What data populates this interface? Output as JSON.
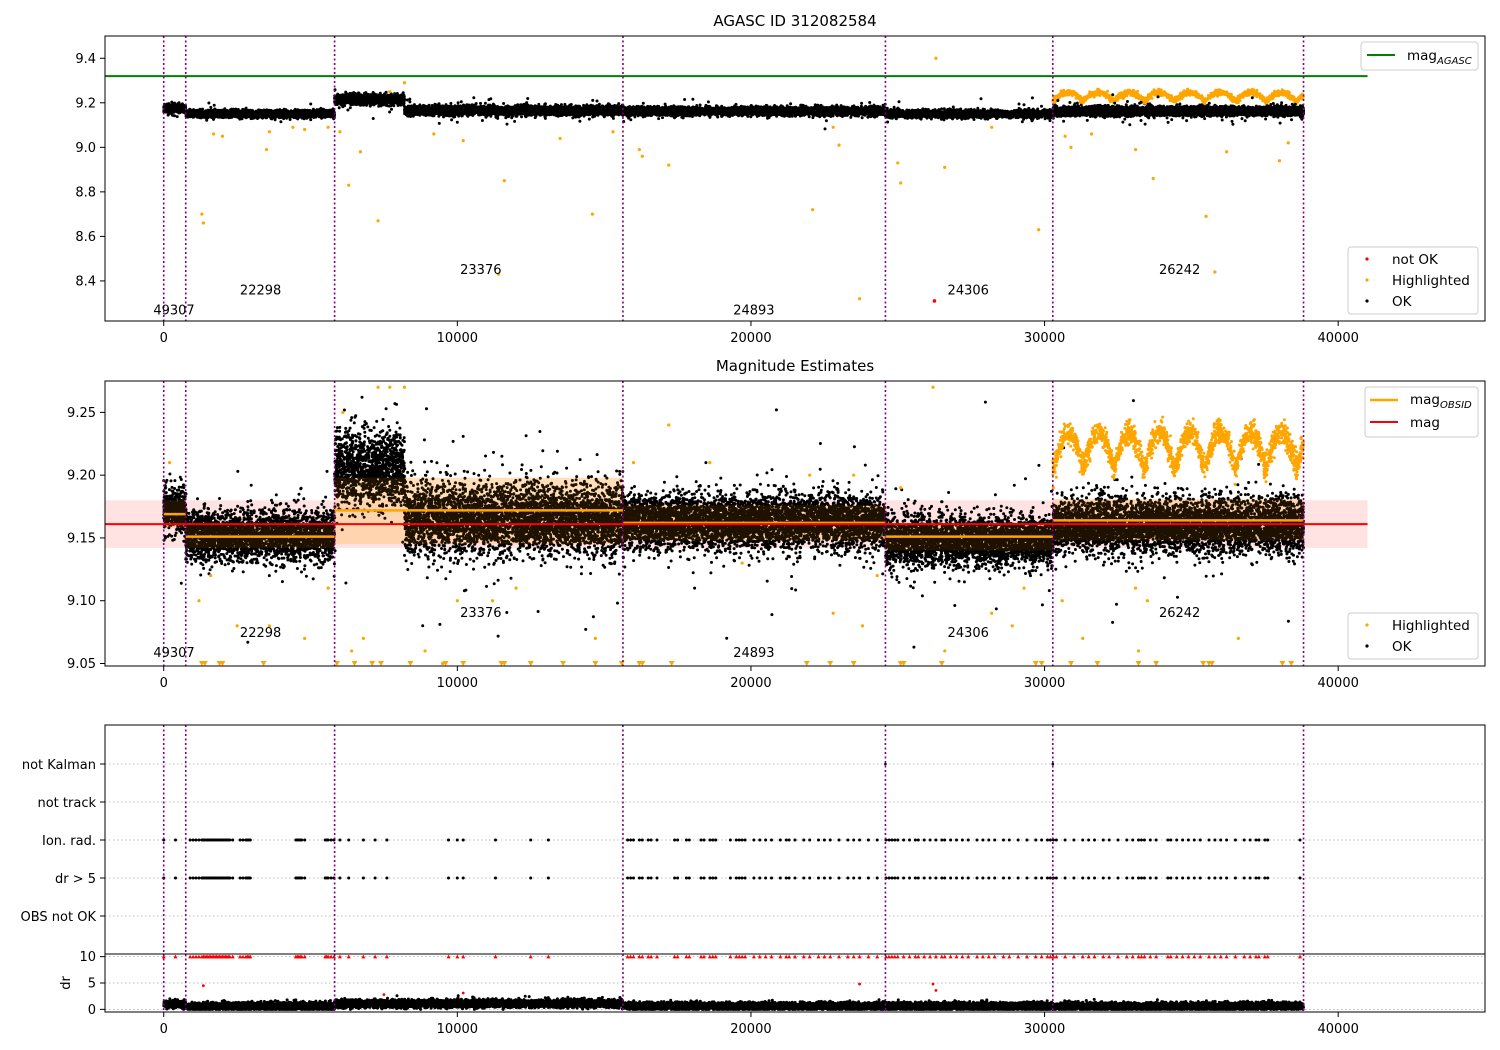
{
  "figure": {
    "suptitle": "",
    "x_ticks": [
      "0",
      "10000",
      "20000",
      "30000",
      "40000"
    ],
    "obs_boundaries": [
      0,
      750,
      5820,
      15640,
      24580,
      30280,
      38820
    ]
  },
  "colors": {
    "ok": "#000000",
    "highlighted": "#ffa500",
    "not_ok": "#ff0000",
    "mag_agasc": "#008000",
    "mag_obsid": "#ffa500",
    "mag": "#ff0000",
    "boundary": "#800080",
    "band_mag": "#ffc0c0",
    "band_obsid": "#ffdcb0"
  },
  "chart_data": [
    {
      "type": "scatter",
      "title": "AGASC ID 312082584",
      "xlim": [
        -2000,
        45000
      ],
      "ylim": [
        8.22,
        9.5
      ],
      "y_ticks": [
        "8.4",
        "8.6",
        "8.8",
        "9.0",
        "9.2",
        "9.4"
      ],
      "mag_agasc": 9.32,
      "legend_line": {
        "label": "mag",
        "sub": "AGASC"
      },
      "legend_points": [
        "not OK",
        "Highlighted",
        "OK"
      ],
      "obsids": [
        {
          "label": "49307",
          "x": 350,
          "y": 8.25
        },
        {
          "label": "22298",
          "x": 3300,
          "y": 8.34
        },
        {
          "label": "23376",
          "x": 10800,
          "y": 8.43
        },
        {
          "label": "24893",
          "x": 20100,
          "y": 8.25
        },
        {
          "label": "24306",
          "x": 27400,
          "y": 8.34
        },
        {
          "label": "26242",
          "x": 34600,
          "y": 8.43
        }
      ],
      "ok_bands": [
        {
          "x": [
            0,
            750
          ],
          "center": 9.175,
          "spread": 0.018
        },
        {
          "x": [
            750,
            5820
          ],
          "center": 9.15,
          "spread": 0.016
        },
        {
          "x": [
            5820,
            8200
          ],
          "center": 9.215,
          "spread": 0.022
        },
        {
          "x": [
            8200,
            15640
          ],
          "center": 9.165,
          "spread": 0.02
        },
        {
          "x": [
            15640,
            24580
          ],
          "center": 9.163,
          "spread": 0.018
        },
        {
          "x": [
            24580,
            30280
          ],
          "center": 9.15,
          "spread": 0.016
        },
        {
          "x": [
            30280,
            38820
          ],
          "center": 9.163,
          "spread": 0.018
        }
      ],
      "highlighted_points": [
        [
          1300,
          8.7
        ],
        [
          1350,
          8.66
        ],
        [
          1700,
          9.06
        ],
        [
          2000,
          9.05
        ],
        [
          3500,
          8.99
        ],
        [
          3600,
          9.07
        ],
        [
          4400,
          9.09
        ],
        [
          4800,
          9.08
        ],
        [
          5600,
          9.09
        ],
        [
          6000,
          9.07
        ],
        [
          6300,
          8.83
        ],
        [
          6700,
          8.98
        ],
        [
          7300,
          8.67
        ],
        [
          7700,
          9.25
        ],
        [
          8200,
          9.29
        ],
        [
          9200,
          9.06
        ],
        [
          10200,
          9.03
        ],
        [
          11600,
          8.85
        ],
        [
          11400,
          8.43
        ],
        [
          13500,
          9.04
        ],
        [
          14600,
          8.7
        ],
        [
          15300,
          9.07
        ],
        [
          16200,
          8.99
        ],
        [
          16300,
          8.96
        ],
        [
          17200,
          8.92
        ],
        [
          22100,
          8.72
        ],
        [
          22800,
          9.09
        ],
        [
          23000,
          9.01
        ],
        [
          23700,
          8.32
        ],
        [
          25000,
          8.93
        ],
        [
          25100,
          8.84
        ],
        [
          26300,
          9.4
        ],
        [
          26600,
          8.91
        ],
        [
          28200,
          9.09
        ],
        [
          29800,
          8.63
        ],
        [
          30700,
          9.05
        ],
        [
          30900,
          9.0
        ],
        [
          31600,
          9.06
        ],
        [
          33100,
          8.99
        ],
        [
          33700,
          8.86
        ],
        [
          35500,
          8.69
        ],
        [
          35800,
          8.44
        ],
        [
          36200,
          8.98
        ],
        [
          38000,
          8.94
        ],
        [
          38300,
          9.02
        ]
      ],
      "highlighted_ribbon": {
        "x": [
          30280,
          38820
        ],
        "y": 9.215
      },
      "not_ok_points": [
        [
          26250,
          8.31
        ]
      ]
    },
    {
      "type": "scatter",
      "title": "Magnitude Estimates",
      "xlim": [
        -2000,
        45000
      ],
      "ylim": [
        9.048,
        9.275
      ],
      "y_ticks": [
        "9.05",
        "9.10",
        "9.15",
        "9.20",
        "9.25"
      ],
      "mag": 9.161,
      "mag_band": [
        9.142,
        9.18
      ],
      "legend_lines": [
        {
          "label": "mag",
          "sub": "OBSID"
        },
        {
          "label": "mag",
          "sub": ""
        }
      ],
      "legend_points": [
        "Highlighted",
        "OK"
      ],
      "obsid_means": [
        {
          "x": [
            0,
            750
          ],
          "y": 9.169,
          "band": [
            9.158,
            9.18
          ]
        },
        {
          "x": [
            750,
            5820
          ],
          "y": 9.151,
          "band": [
            9.142,
            9.16
          ]
        },
        {
          "x": [
            5820,
            15640
          ],
          "y": 9.172,
          "band": [
            9.145,
            9.198
          ]
        },
        {
          "x": [
            15640,
            24580
          ],
          "y": 9.162,
          "band": [
            9.148,
            9.176
          ]
        },
        {
          "x": [
            24580,
            30280
          ],
          "y": 9.151,
          "band": [
            9.14,
            9.162
          ]
        },
        {
          "x": [
            30280,
            38820
          ],
          "y": 9.164,
          "band": [
            9.148,
            9.181
          ]
        }
      ],
      "obsids": [
        {
          "label": "49307",
          "x": 350,
          "y": 9.055
        },
        {
          "label": "22298",
          "x": 3300,
          "y": 9.071
        },
        {
          "label": "23376",
          "x": 10800,
          "y": 9.087
        },
        {
          "label": "24893",
          "x": 20100,
          "y": 9.055
        },
        {
          "label": "24306",
          "x": 27400,
          "y": 9.071
        },
        {
          "label": "26242",
          "x": 34600,
          "y": 9.087
        }
      ],
      "ok_bands": [
        {
          "x": [
            0,
            750
          ],
          "center": 9.172,
          "spread": 0.018
        },
        {
          "x": [
            750,
            5820
          ],
          "center": 9.152,
          "spread": 0.02
        },
        {
          "x": [
            5820,
            8200
          ],
          "center": 9.205,
          "spread": 0.03
        },
        {
          "x": [
            8200,
            15640
          ],
          "center": 9.165,
          "spread": 0.028
        },
        {
          "x": [
            15640,
            24580
          ],
          "center": 9.163,
          "spread": 0.022
        },
        {
          "x": [
            24580,
            30280
          ],
          "center": 9.148,
          "spread": 0.02
        },
        {
          "x": [
            30280,
            38820
          ],
          "center": 9.16,
          "spread": 0.022
        }
      ],
      "highlighted_ribbon": {
        "x": [
          30280,
          38820
        ],
        "y": 9.21
      },
      "highlighted_points": [
        [
          200,
          9.21
        ],
        [
          1200,
          9.1
        ],
        [
          1600,
          9.12
        ],
        [
          2500,
          9.08
        ],
        [
          3600,
          9.08
        ],
        [
          4800,
          9.07
        ],
        [
          5600,
          9.11
        ],
        [
          6100,
          9.25
        ],
        [
          6400,
          9.06
        ],
        [
          6800,
          9.07
        ],
        [
          7300,
          9.27
        ],
        [
          7700,
          9.27
        ],
        [
          8200,
          9.27
        ],
        [
          8900,
          9.06
        ],
        [
          9500,
          9.05
        ],
        [
          10000,
          9.1
        ],
        [
          11200,
          9.1
        ],
        [
          12000,
          9.11
        ],
        [
          14700,
          9.07
        ],
        [
          16000,
          9.21
        ],
        [
          17200,
          9.24
        ],
        [
          18600,
          9.21
        ],
        [
          19700,
          9.13
        ],
        [
          22000,
          9.2
        ],
        [
          22800,
          9.09
        ],
        [
          23500,
          9.2
        ],
        [
          23800,
          9.08
        ],
        [
          24300,
          9.12
        ],
        [
          25100,
          9.19
        ],
        [
          26200,
          9.27
        ],
        [
          26600,
          9.06
        ],
        [
          28200,
          9.09
        ],
        [
          28900,
          9.08
        ],
        [
          29300,
          9.11
        ],
        [
          30300,
          9.19
        ],
        [
          30600,
          9.1
        ],
        [
          31300,
          9.07
        ],
        [
          33100,
          9.11
        ],
        [
          33200,
          9.06
        ],
        [
          33500,
          9.1
        ],
        [
          36600,
          9.07
        ]
      ],
      "lower_limit_markers": [
        1300,
        1400,
        1900,
        2000,
        3400,
        5900,
        6500,
        7100,
        7400,
        8400,
        9600,
        10200,
        11500,
        11600,
        12500,
        13600,
        14700,
        15600,
        16200,
        16300,
        17300,
        21900,
        22700,
        23500,
        25100,
        25200,
        26500,
        29700,
        29900,
        30900,
        31800,
        33200,
        33800,
        35400,
        35600,
        35700,
        38100,
        38400
      ]
    },
    {
      "type": "scatter",
      "title": "",
      "xlim": [
        -2000,
        45000
      ],
      "categories": [
        "not Kalman",
        "not track",
        "Ion. rad.",
        "dr > 5",
        "OBS not OK"
      ],
      "flag_times": [
        0,
        400,
        900,
        1000,
        1100,
        1200,
        1300,
        1350,
        1400,
        1450,
        1500,
        1550,
        1600,
        1650,
        1700,
        1750,
        1800,
        1850,
        1900,
        1950,
        2000,
        2050,
        2100,
        2150,
        2200,
        2250,
        2350,
        2600,
        2700,
        2800,
        2850,
        2900,
        2950,
        4500,
        4550,
        4600,
        4650,
        4700,
        4800,
        5500,
        5550,
        5600,
        5700,
        5800,
        6000,
        6300,
        6800,
        7200,
        7600,
        9700,
        10000,
        10200,
        11300,
        12500,
        13100,
        15800,
        15900,
        16000,
        16200,
        16300,
        16500,
        16600,
        16800,
        17400,
        17500,
        17800,
        17900,
        18300,
        18400,
        18600,
        18700,
        18800,
        19300,
        19500,
        19600,
        19700,
        19800,
        20100,
        20300,
        20500,
        20700,
        21000,
        21200,
        21300,
        21500,
        21800,
        22000,
        22300,
        22500,
        22700,
        23000,
        23300,
        23500,
        23700,
        24000,
        24300,
        24600,
        24700,
        24800,
        24900,
        25000,
        25200,
        25400,
        25600,
        25700,
        25900,
        26100,
        26300,
        26500,
        26600,
        26800,
        27000,
        27200,
        27400,
        27700,
        27900,
        28100,
        28300,
        28600,
        28800,
        29100,
        29400,
        29700,
        29900,
        30100,
        30200,
        30300,
        30400,
        30700,
        31000,
        31300,
        31500,
        31700,
        32000,
        32200,
        32500,
        32800,
        33000,
        33200,
        33300,
        33400,
        33600,
        33800,
        34200,
        34300,
        34500,
        34700,
        34900,
        35100,
        35300,
        35600,
        35800,
        36000,
        36200,
        36500,
        36800,
        37000,
        37200,
        37300,
        37500,
        37600,
        38700
      ],
      "not_kalman_times": [
        24580,
        30280
      ]
    },
    {
      "type": "scatter",
      "title": "",
      "ylabel": "dr",
      "xlim": [
        -2000,
        45000
      ],
      "ylim": [
        -0.5,
        10.5
      ],
      "y_ticks": [
        "0",
        "5",
        "10"
      ],
      "x_ticks": [
        "0",
        "10000",
        "20000",
        "30000",
        "40000"
      ],
      "dr_levels": [
        {
          "x": [
            0,
            750
          ],
          "y": 1.0
        },
        {
          "x": [
            750,
            5820
          ],
          "y": 0.6
        },
        {
          "x": [
            5820,
            15640
          ],
          "y": 1.1
        },
        {
          "x": [
            15640,
            24580
          ],
          "y": 0.6
        },
        {
          "x": [
            24580,
            30280
          ],
          "y": 0.6
        },
        {
          "x": [
            30280,
            38820
          ],
          "y": 0.6
        }
      ],
      "dr_outliers": [
        [
          1350,
          4.5
        ],
        [
          7500,
          2.8
        ],
        [
          10200,
          3.1
        ],
        [
          23700,
          4.8
        ],
        [
          26200,
          4.8
        ],
        [
          26300,
          3.6
        ]
      ],
      "clipped_value": 10
    }
  ]
}
